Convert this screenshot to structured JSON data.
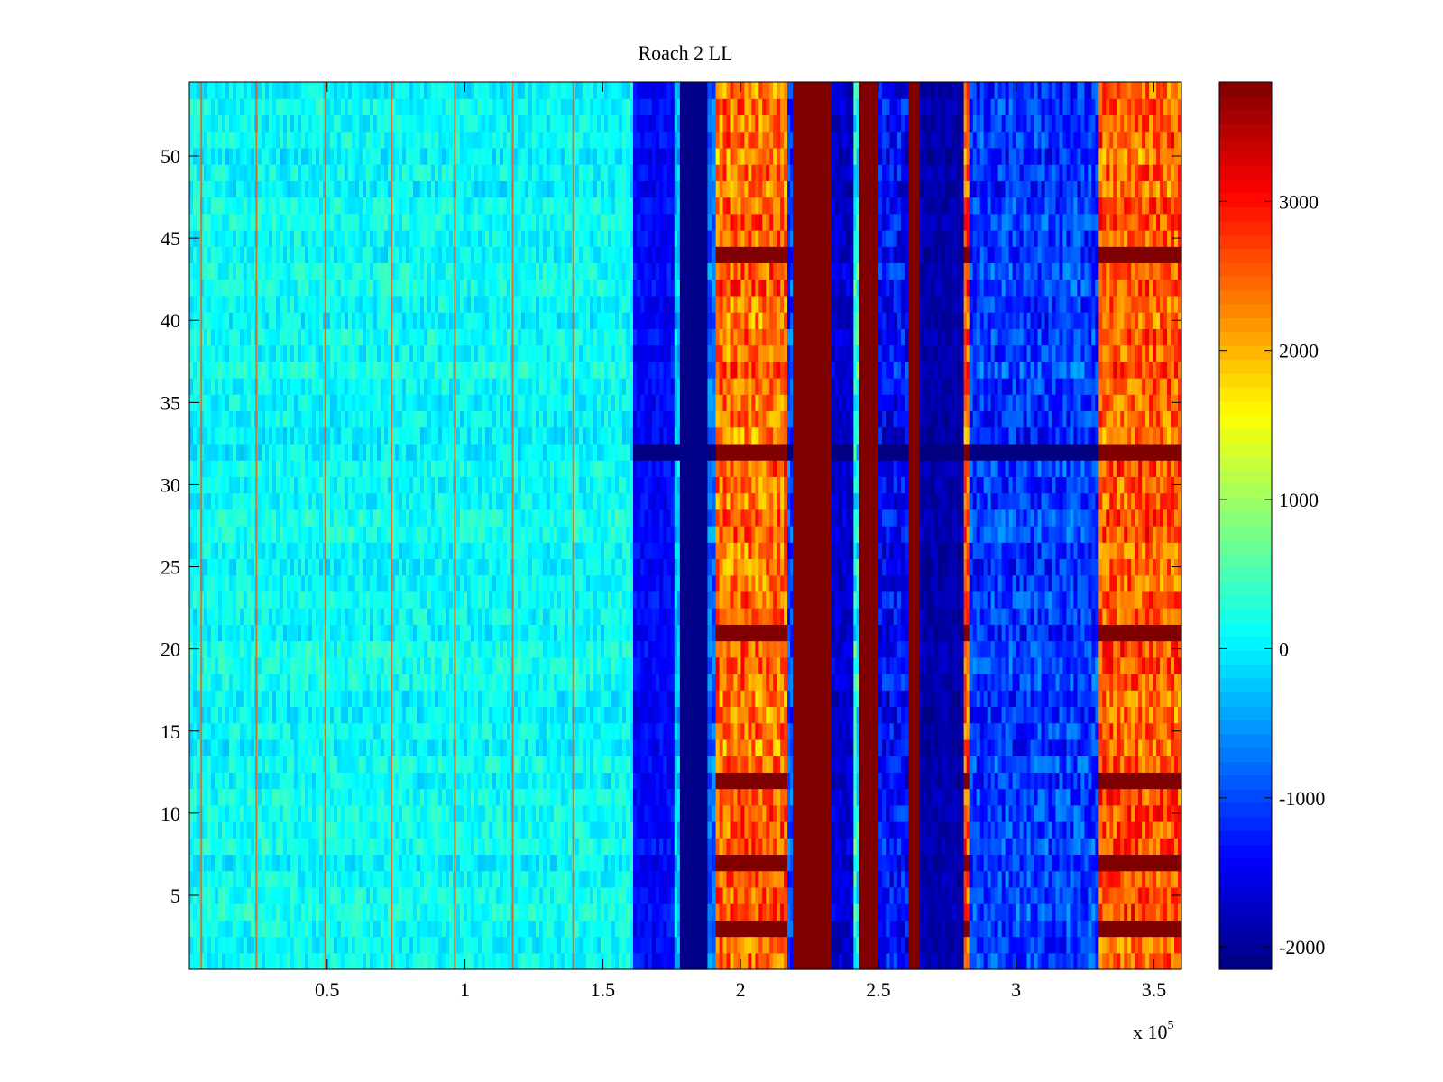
{
  "chart_data": {
    "type": "heatmap",
    "title": "Roach 2 LL",
    "xlabel": "",
    "ylabel": "",
    "x_exponent_label": {
      "base": "x 10",
      "exp": "5"
    },
    "xlim": [
      0,
      3.6
    ],
    "ylim": [
      0.5,
      54.5
    ],
    "rows": 54,
    "x_ticks": [
      {
        "value": 0.5,
        "label": "0.5"
      },
      {
        "value": 1.0,
        "label": "1"
      },
      {
        "value": 1.5,
        "label": "1.5"
      },
      {
        "value": 2.0,
        "label": "2"
      },
      {
        "value": 2.5,
        "label": "2.5"
      },
      {
        "value": 3.0,
        "label": "3"
      },
      {
        "value": 3.5,
        "label": "3.5"
      }
    ],
    "y_ticks": [
      {
        "value": 5,
        "label": "5"
      },
      {
        "value": 10,
        "label": "10"
      },
      {
        "value": 15,
        "label": "15"
      },
      {
        "value": 20,
        "label": "20"
      },
      {
        "value": 25,
        "label": "25"
      },
      {
        "value": 30,
        "label": "30"
      },
      {
        "value": 35,
        "label": "35"
      },
      {
        "value": 40,
        "label": "40"
      },
      {
        "value": 45,
        "label": "45"
      },
      {
        "value": 50,
        "label": "50"
      }
    ],
    "colorbar": {
      "colormap": "jet",
      "clim": [
        -2150,
        3800
      ],
      "ticks": [
        {
          "value": -2000,
          "label": "-2000"
        },
        {
          "value": -1000,
          "label": "-1000"
        },
        {
          "value": 0,
          "label": "0"
        },
        {
          "value": 1000,
          "label": "1000"
        },
        {
          "value": 2000,
          "label": "2000"
        },
        {
          "value": 3000,
          "label": "3000"
        }
      ]
    },
    "column_bands": [
      {
        "x": [
          0.0,
          1.61
        ],
        "approx_value": 100,
        "variation": 300
      },
      {
        "x": [
          1.61,
          1.76
        ],
        "approx_value": -1400,
        "variation": 250
      },
      {
        "x": [
          1.76,
          1.78
        ],
        "approx_value": -300,
        "variation": 400
      },
      {
        "x": [
          1.78,
          1.88
        ],
        "approx_value": -2100,
        "variation": 0
      },
      {
        "x": [
          1.88,
          1.91
        ],
        "approx_value": -800,
        "variation": 400
      },
      {
        "x": [
          1.91,
          2.17
        ],
        "approx_value": 2400,
        "variation": 600
      },
      {
        "x": [
          2.17,
          2.19
        ],
        "approx_value": -1000,
        "variation": 500
      },
      {
        "x": [
          2.19,
          2.33
        ],
        "approx_value": 3800,
        "variation": 0
      },
      {
        "x": [
          2.33,
          2.41
        ],
        "approx_value": -1700,
        "variation": 300
      },
      {
        "x": [
          2.41,
          2.43
        ],
        "approx_value": 200,
        "variation": 600
      },
      {
        "x": [
          2.43,
          2.5
        ],
        "approx_value": 3800,
        "variation": 0
      },
      {
        "x": [
          2.5,
          2.61
        ],
        "approx_value": -1400,
        "variation": 500
      },
      {
        "x": [
          2.61,
          2.65
        ],
        "approx_value": 3800,
        "variation": 0
      },
      {
        "x": [
          2.65,
          2.81
        ],
        "approx_value": -1900,
        "variation": 200
      },
      {
        "x": [
          2.81,
          2.83
        ],
        "approx_value": 2500,
        "variation": 600
      },
      {
        "x": [
          2.83,
          3.3
        ],
        "approx_value": -1100,
        "variation": 500
      },
      {
        "x": [
          3.3,
          3.6
        ],
        "approx_value": 2500,
        "variation": 600
      }
    ],
    "hot_rows": [
      3,
      7,
      12,
      21,
      32,
      44
    ]
  }
}
